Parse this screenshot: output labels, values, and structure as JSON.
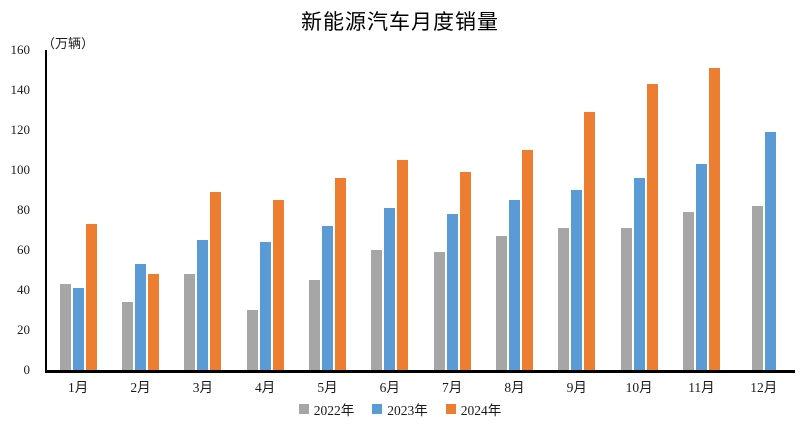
{
  "chart_data": {
    "type": "bar",
    "title": "新能源汽车月度销量",
    "unit": "（万辆）",
    "categories": [
      "1月",
      "2月",
      "3月",
      "4月",
      "5月",
      "6月",
      "7月",
      "8月",
      "9月",
      "10月",
      "11月",
      "12月"
    ],
    "series": [
      {
        "name": "2022年",
        "color": "#A6A6A6",
        "values": [
          43,
          34,
          48,
          30,
          45,
          60,
          59,
          67,
          71,
          71,
          79,
          82
        ]
      },
      {
        "name": "2023年",
        "color": "#5B9BD5",
        "values": [
          41,
          53,
          65,
          64,
          72,
          81,
          78,
          85,
          90,
          96,
          103,
          119
        ]
      },
      {
        "name": "2024年",
        "color": "#ED7D31",
        "values": [
          73,
          48,
          89,
          85,
          96,
          105,
          99,
          110,
          129,
          143,
          151,
          null
        ]
      }
    ],
    "ylim": [
      0,
      160
    ],
    "ytick_step": 20,
    "grid": false,
    "legend_position": "bottom",
    "axis_color": "#000000",
    "background_color": "#ffffff"
  }
}
